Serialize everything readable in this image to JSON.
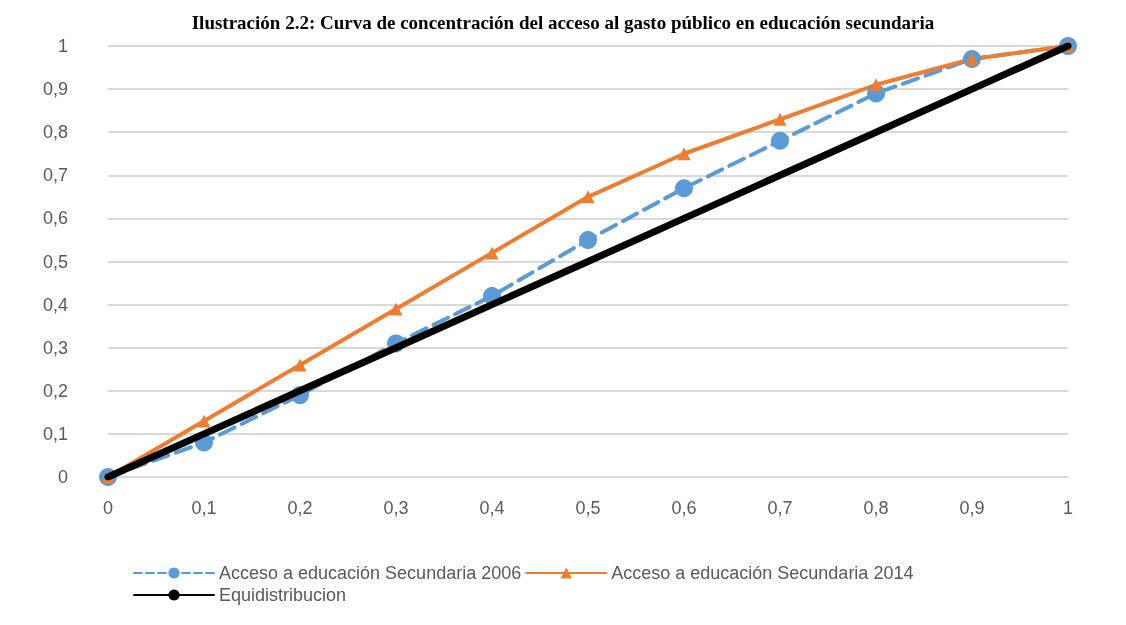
{
  "chart_data": {
    "type": "line",
    "title": "Ilustración 2.2: Curva de concentración del acceso al gasto público en educación secundaria",
    "categories": [
      "0",
      "0,1",
      "0,2",
      "0,3",
      "0,4",
      "0,5",
      "0,6",
      "0,7",
      "0,8",
      "0,9",
      "1"
    ],
    "series": [
      {
        "name": "Acceso a educación Secundaria 2006",
        "color": "#5b9bd5",
        "marker": "circle",
        "line_style": "dashed",
        "values": [
          0,
          0.08,
          0.19,
          0.31,
          0.42,
          0.55,
          0.67,
          0.78,
          0.89,
          0.97,
          1
        ]
      },
      {
        "name": "Acceso a educación Secundaria 2014",
        "color": "#ed7d31",
        "marker": "triangle",
        "line_style": "solid",
        "values": [
          0,
          0.13,
          0.26,
          0.39,
          0.52,
          0.65,
          0.75,
          0.83,
          0.91,
          0.97,
          1
        ]
      },
      {
        "name": "Equidistribucion",
        "color": "#000000",
        "marker": "none",
        "line_style": "solid",
        "values": [
          0,
          0.1,
          0.2,
          0.3,
          0.4,
          0.5,
          0.6,
          0.7,
          0.8,
          0.9,
          1
        ]
      }
    ],
    "ylim": [
      0,
      1
    ],
    "yticks": [
      0,
      {
        "value": 0.1,
        "label": "0,1"
      },
      {
        "value": 0.2,
        "label": "0,2"
      },
      {
        "value": 0.3,
        "label": "0,3"
      },
      {
        "value": 0.4,
        "label": "0,4"
      },
      {
        "value": 0.5,
        "label": "0,5"
      },
      {
        "value": 0.6,
        "label": "0,6"
      },
      {
        "value": 0.7,
        "label": "0,7"
      },
      {
        "value": 0.8,
        "label": "0,8"
      },
      {
        "value": 0.9,
        "label": "0,9"
      },
      1
    ],
    "grid": "y",
    "legend": "bottom"
  }
}
